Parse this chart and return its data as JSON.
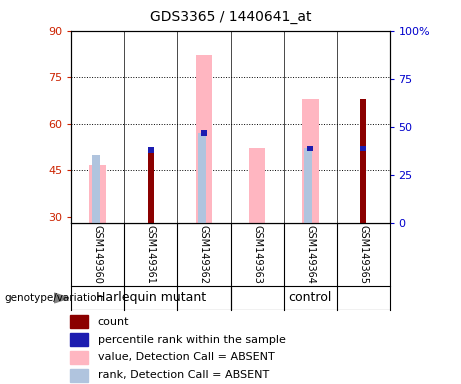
{
  "title": "GDS3365 / 1440641_at",
  "samples": [
    "GSM149360",
    "GSM149361",
    "GSM149362",
    "GSM149363",
    "GSM149364",
    "GSM149365"
  ],
  "group_indices": {
    "Harlequin mutant": [
      0,
      1,
      2
    ],
    "control": [
      3,
      4,
      5
    ]
  },
  "ylim_left": [
    28,
    90
  ],
  "ylim_right": [
    0,
    100
  ],
  "yticks_left": [
    30,
    45,
    60,
    75,
    90
  ],
  "yticks_right": [
    0,
    25,
    50,
    75,
    100
  ],
  "ytick_labels_left": [
    "30",
    "45",
    "60",
    "75",
    "90"
  ],
  "ytick_labels_right": [
    "0",
    "25",
    "50",
    "75",
    "100%"
  ],
  "count_color": "#8B0000",
  "percentile_color": "#1C1CB0",
  "value_absent_color": "#FFB6C1",
  "rank_absent_color": "#B0C4DE",
  "count_values": [
    null,
    51.5,
    null,
    null,
    null,
    68.0
  ],
  "percentile_values": [
    null,
    51.5,
    57.0,
    null,
    52.0,
    52.0
  ],
  "value_absent": [
    46.5,
    null,
    82.0,
    52.0,
    68.0,
    null
  ],
  "rank_absent": [
    50.0,
    null,
    57.0,
    null,
    52.0,
    null
  ],
  "group_color": "#76EE76",
  "sample_bg_color": "#C8C8C8",
  "left_axis_color": "#CC2200",
  "right_axis_color": "#0000CC",
  "title_fontsize": 10,
  "sample_fontsize": 7,
  "group_fontsize": 9,
  "legend_fontsize": 8,
  "legend_items": [
    {
      "label": "count",
      "color": "#8B0000"
    },
    {
      "label": "percentile rank within the sample",
      "color": "#1C1CB0"
    },
    {
      "label": "value, Detection Call = ABSENT",
      "color": "#FFB6C1"
    },
    {
      "label": "rank, Detection Call = ABSENT",
      "color": "#B0C4DE"
    }
  ]
}
